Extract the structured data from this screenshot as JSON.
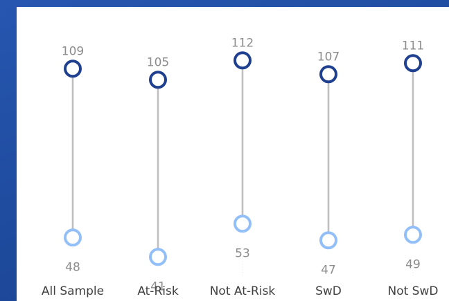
{
  "chart_data": {
    "type": "dumbbell",
    "title": "",
    "xlabel": "",
    "ylabel": "",
    "grid": false,
    "categories": [
      "All Sample",
      "At-Risk",
      "Not At-Risk",
      "SwD",
      "Not SwD"
    ],
    "series": [
      {
        "values": [
          109,
          105,
          112,
          107,
          111
        ],
        "marker": "open-circle",
        "color": "#1f3f8f"
      },
      {
        "values": [
          48,
          41,
          53,
          47,
          49
        ],
        "marker": "open-circle",
        "color": "#93bff8"
      }
    ],
    "connector_color": "#bfbfbf"
  }
}
